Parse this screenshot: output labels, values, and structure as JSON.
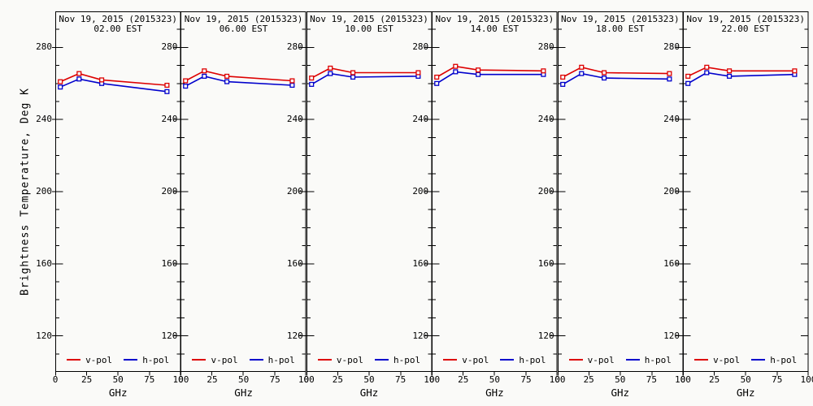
{
  "figure": {
    "background": "#fafaf8",
    "axis_color": "#000000"
  },
  "chart_data": {
    "type": "line",
    "ylabel": "Brightness Temperature, Deg K",
    "xlabel": "GHz",
    "xlim": [
      0,
      100
    ],
    "ylim": [
      100,
      300
    ],
    "xticks": [
      0,
      25,
      50,
      75,
      100
    ],
    "yticks": [
      280,
      240,
      200,
      160,
      120
    ],
    "y_minor_step": 10,
    "grid": "off",
    "legend_position": "bottom-inside-each-panel",
    "x_ghz": [
      4,
      19,
      37,
      89
    ],
    "legend": [
      {
        "label": "v-pol",
        "color": "#dd0000"
      },
      {
        "label": "h-pol",
        "color": "#0000cc"
      }
    ],
    "panels": [
      {
        "date": "Nov 19, 2015 (2015323)",
        "time": "02.00 EST",
        "series": {
          "vpol": [
            261,
            265.5,
            262,
            259
          ],
          "hpol": [
            258,
            262.5,
            260,
            255.5
          ]
        }
      },
      {
        "date": "Nov 19, 2015 (2015323)",
        "time": "06.00 EST",
        "series": {
          "vpol": [
            261.5,
            267,
            264,
            261.5
          ],
          "hpol": [
            258.5,
            264,
            261,
            259
          ]
        }
      },
      {
        "date": "Nov 19, 2015 (2015323)",
        "time": "10.00 EST",
        "series": {
          "vpol": [
            263,
            268.5,
            266,
            266
          ],
          "hpol": [
            259.5,
            265.5,
            263.5,
            264
          ]
        }
      },
      {
        "date": "Nov 19, 2015 (2015323)",
        "time": "14.00 EST",
        "series": {
          "vpol": [
            263.5,
            269.5,
            267.5,
            267
          ],
          "hpol": [
            260,
            266.5,
            265,
            265
          ]
        }
      },
      {
        "date": "Nov 19, 2015 (2015323)",
        "time": "18.00 EST",
        "series": {
          "vpol": [
            263.5,
            269,
            266,
            265.5
          ],
          "hpol": [
            259.5,
            265.5,
            263,
            262.5
          ]
        }
      },
      {
        "date": "Nov 19, 2015 (2015323)",
        "time": "22.00 EST",
        "series": {
          "vpol": [
            264,
            269,
            267,
            267
          ],
          "hpol": [
            260,
            266,
            264,
            265
          ]
        }
      }
    ]
  }
}
